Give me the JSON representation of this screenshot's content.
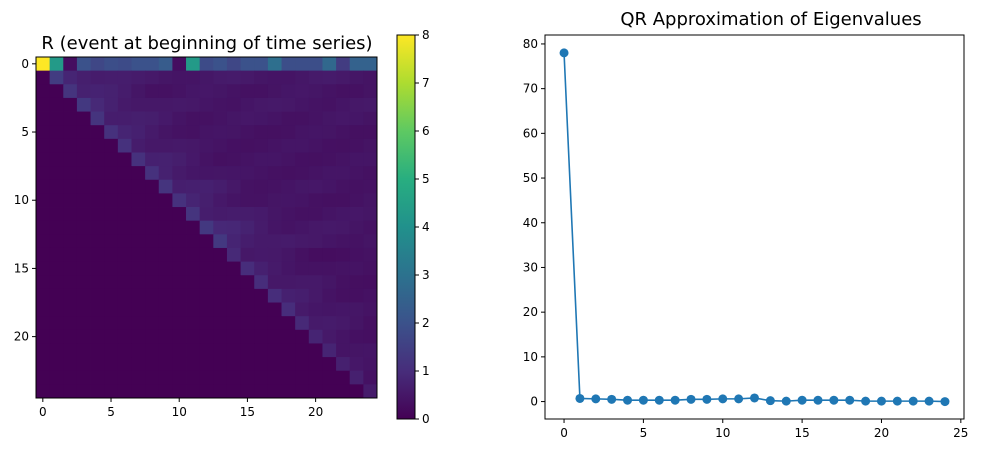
{
  "chart_data": [
    {
      "type": "heatmap",
      "title": "R (event at beginning of time series)",
      "xlabel": "",
      "ylabel": "",
      "n": 25,
      "x_ticks": [
        0,
        5,
        10,
        15,
        20
      ],
      "y_ticks": [
        0,
        5,
        10,
        15,
        20
      ],
      "colorbar": {
        "ticks": [
          0,
          1,
          2,
          3,
          4,
          5,
          6,
          7,
          8
        ],
        "range": [
          0,
          8
        ],
        "colormap": "viridis"
      },
      "first_row": [
        8.0,
        4.3,
        0.3,
        2.0,
        1.7,
        1.9,
        1.8,
        2.0,
        2.0,
        2.3,
        0.3,
        4.3,
        1.8,
        2.0,
        1.7,
        2.0,
        2.0,
        2.9,
        1.9,
        1.9,
        1.9,
        2.7,
        1.4,
        2.5,
        2.5
      ],
      "diagonal": [
        8.0,
        1.4,
        1.2,
        1.3,
        1.2,
        1.1,
        1.1,
        1.1,
        1.1,
        1.2,
        1.1,
        1.2,
        1.3,
        1.3,
        0.9,
        1.0,
        1.0,
        1.0,
        1.0,
        0.9,
        0.8,
        0.8,
        0.7,
        0.7,
        0.6
      ]
    },
    {
      "type": "line",
      "title": "QR Approximation of Eigenvalues",
      "xlabel": "",
      "ylabel": "",
      "x": [
        0,
        1,
        2,
        3,
        4,
        5,
        6,
        7,
        8,
        9,
        10,
        11,
        12,
        13,
        14,
        15,
        16,
        17,
        18,
        19,
        20,
        21,
        22,
        23,
        24
      ],
      "values": [
        78.0,
        0.7,
        0.6,
        0.5,
        0.3,
        0.3,
        0.3,
        0.3,
        0.5,
        0.5,
        0.6,
        0.6,
        0.8,
        0.2,
        0.1,
        0.3,
        0.3,
        0.3,
        0.3,
        0.1,
        0.1,
        0.1,
        0.1,
        0.1,
        0.0
      ],
      "xlim": [
        -1.2,
        25.2
      ],
      "ylim": [
        -3.9,
        82.0
      ],
      "x_ticks": [
        0,
        5,
        10,
        15,
        20,
        25
      ],
      "y_ticks": [
        0,
        10,
        20,
        30,
        40,
        50,
        60,
        70,
        80
      ],
      "color": "#1f77b4"
    }
  ]
}
